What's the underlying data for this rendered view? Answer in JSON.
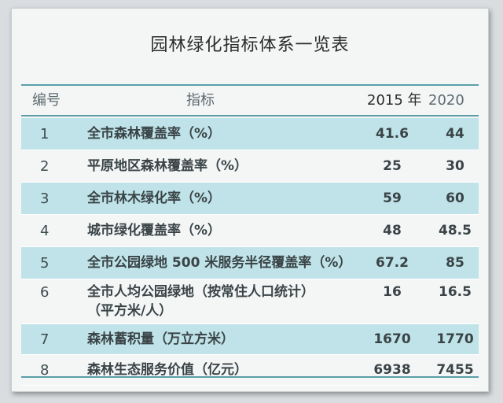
{
  "title": "园林绿化指标体系一览表",
  "columns": {
    "no": "编号",
    "indicator": "指标",
    "y2015": "2015 年",
    "y2020": "2020 年"
  },
  "rows": [
    {
      "no": "1",
      "line1": "全市森林覆盖率（%）",
      "line2": "",
      "v2015": "41.6",
      "v2020": "44"
    },
    {
      "no": "2",
      "line1": "平原地区森林覆盖率（%）",
      "line2": "",
      "v2015": "25",
      "v2020": "30"
    },
    {
      "no": "3",
      "line1": "全市林木绿化率（%）",
      "line2": "",
      "v2015": "59",
      "v2020": "60"
    },
    {
      "no": "4",
      "line1": "城市绿化覆盖率（%）",
      "line2": "",
      "v2015": "48",
      "v2020": "48.5"
    },
    {
      "no": "5",
      "line1": "全市公园绿地 500 米服务半径覆盖率（%）",
      "line2": "",
      "v2015": "67.2",
      "v2020": "85"
    },
    {
      "no": "6",
      "line1": "全市人均公园绿地（按常住人口统计）",
      "line2": "（平方米/人）",
      "v2015": "16",
      "v2020": "16.5"
    },
    {
      "no": "7",
      "line1": "森林蓄积量（万立方米）",
      "line2": "",
      "v2015": "1670",
      "v2020": "1770"
    },
    {
      "no": "8",
      "line1": "森林生态服务价值（亿元）",
      "line2": "",
      "v2015": "6938",
      "v2020": "7455"
    }
  ],
  "colors": {
    "accent": "#5a9fa8",
    "shade": "#bfe3e8"
  }
}
